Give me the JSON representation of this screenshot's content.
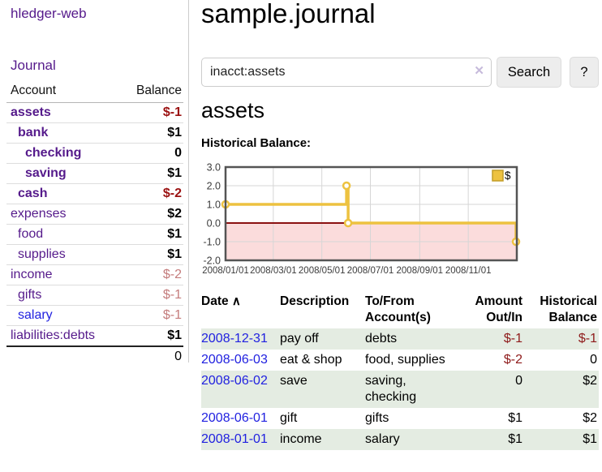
{
  "colors": {
    "purple": "#551a8b",
    "linkBlue": "#2121e0",
    "negStrong": "#9b1111",
    "negSoft": "#c47c7c",
    "negTable": "#8e1a1a",
    "stripe": "#e4ece2"
  },
  "sidebar": {
    "brand": "hledger-web",
    "journal_link": "Journal",
    "table": {
      "account_header": "Account",
      "balance_header": "Balance",
      "rows": [
        {
          "account": "assets",
          "balance": "$-1",
          "indent": 0,
          "bold": true,
          "balance_style": "neg-strong"
        },
        {
          "account": "bank",
          "balance": "$1",
          "indent": 1,
          "bold": true,
          "balance_style": "pos"
        },
        {
          "account": "checking",
          "balance": "0",
          "indent": 2,
          "bold": true,
          "balance_style": "pos"
        },
        {
          "account": "saving",
          "balance": "$1",
          "indent": 2,
          "bold": true,
          "balance_style": "pos"
        },
        {
          "account": "cash",
          "balance": "$-2",
          "indent": 1,
          "bold": true,
          "balance_style": "neg-strong"
        },
        {
          "account": "expenses",
          "balance": "$2",
          "indent": 0,
          "bold": false,
          "balance_style": "pos"
        },
        {
          "account": "food",
          "balance": "$1",
          "indent": 1,
          "bold": false,
          "balance_style": "pos"
        },
        {
          "account": "supplies",
          "balance": "$1",
          "indent": 1,
          "bold": false,
          "balance_style": "pos"
        },
        {
          "account": "income",
          "balance": "$-2",
          "indent": 0,
          "bold": false,
          "balance_style": "neg-soft"
        },
        {
          "account": "gifts",
          "balance": "$-1",
          "indent": 1,
          "bold": false,
          "balance_style": "neg-soft"
        },
        {
          "account": "salary",
          "balance": "$-1",
          "indent": 1,
          "bold": false,
          "balance_style": "neg-soft",
          "link_color": "blue"
        },
        {
          "account": "liabilities:debts",
          "balance": "$1",
          "indent": 0,
          "bold": false,
          "balance_style": "pos"
        }
      ],
      "total": "0"
    }
  },
  "main": {
    "title": "sample.journal",
    "search": {
      "query": "inacct:assets",
      "clear_icon": "✕",
      "button_label": "Search",
      "help_label": "?"
    },
    "account_heading": "assets",
    "chart_heading": "Historical Balance:",
    "register": {
      "headers": {
        "date": "Date",
        "sort_icon": "∧",
        "description": "Description",
        "account_line1": "To/From",
        "account_line2": "Account(s)",
        "amount_line1": "Amount",
        "amount_line2": "Out/In",
        "balance_line1": "Historical",
        "balance_line2": "Balance"
      },
      "rows": [
        {
          "date": "2008-12-31",
          "description": "pay off",
          "accounts": "debts",
          "amount": "$-1",
          "balance": "$-1"
        },
        {
          "date": "2008-06-03",
          "description": "eat & shop",
          "accounts": "food, supplies",
          "amount": "$-2",
          "balance": "0"
        },
        {
          "date": "2008-06-02",
          "description": "save",
          "accounts": "saving, checking",
          "amount": "0",
          "balance": "$2"
        },
        {
          "date": "2008-06-01",
          "description": "gift",
          "accounts": "gifts",
          "amount": "$1",
          "balance": "$2"
        },
        {
          "date": "2008-01-01",
          "description": "income",
          "accounts": "salary",
          "amount": "$1",
          "balance": "$1"
        }
      ]
    }
  },
  "chart_data": {
    "type": "line",
    "step": true,
    "title": "Historical Balance",
    "series": [
      {
        "name": "$",
        "color": "#edc240",
        "points": [
          [
            "2008-01-01",
            1
          ],
          [
            "2008-06-01",
            2
          ],
          [
            "2008-06-03",
            0
          ],
          [
            "2008-12-31",
            -1
          ]
        ]
      }
    ],
    "xlim": [
      "2008-01-01",
      "2009-01-01"
    ],
    "ylim": [
      -2,
      3
    ],
    "yticks": {
      "values": [
        3,
        2,
        1,
        0,
        -1,
        -2
      ],
      "labels": [
        "3.0",
        "2.0",
        "1.0",
        "0.0",
        "-1.0",
        "-2.0"
      ]
    },
    "xticks": {
      "values": [
        "2008-01-01",
        "2008-03-01",
        "2008-05-01",
        "2008-07-01",
        "2008-09-01",
        "2008-11-01"
      ],
      "labels": [
        "2008/01/01",
        "2008/03/01",
        "2008/05/01",
        "2008/07/01",
        "2008/09/01",
        "2008/11/01"
      ]
    },
    "grid_on": true,
    "negative_fill": "#fbdcdc",
    "zero_line_color": "#8b1212",
    "grid_color": "#d6d6d6",
    "border_color": "#545454",
    "legend": {
      "position": "top-right",
      "label": "$",
      "swatch_fill": "#edc240",
      "swatch_border": "#c29d28"
    }
  }
}
